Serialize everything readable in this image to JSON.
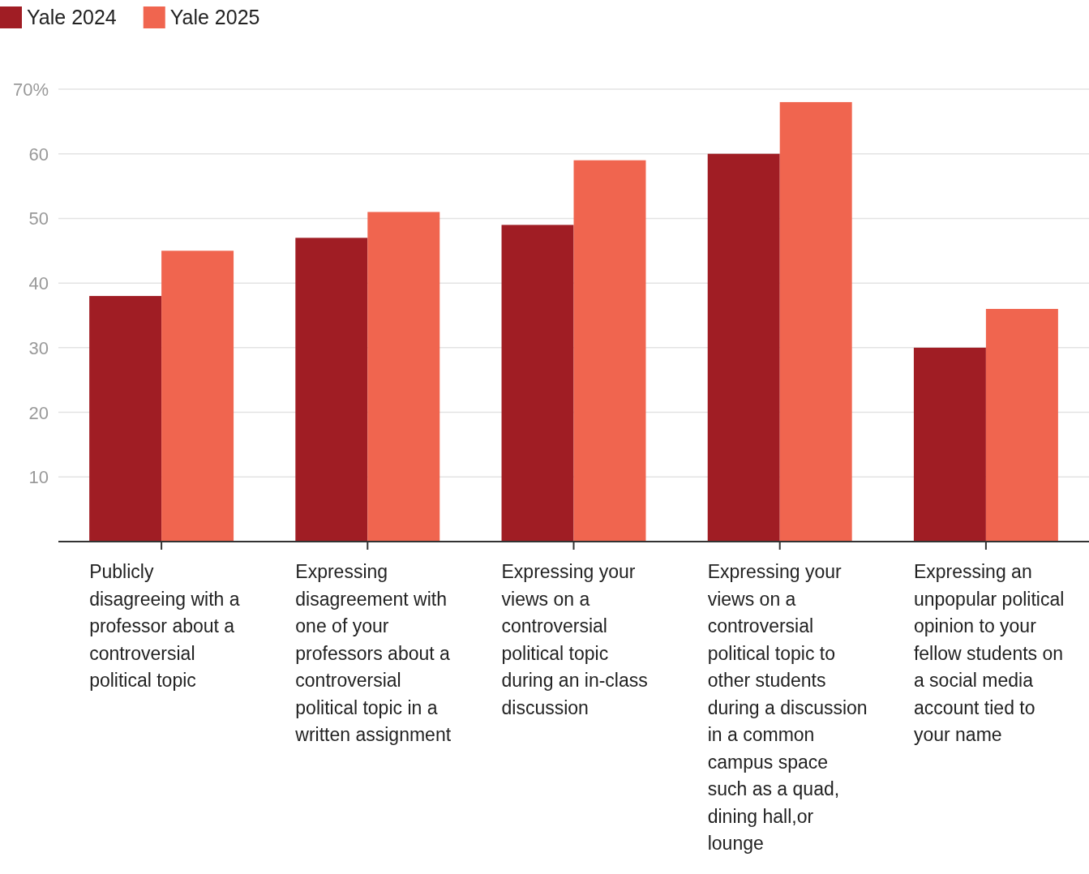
{
  "chart_data": {
    "type": "bar",
    "categories": [
      "Publicly disagreeing with a professor about a controversial political topic",
      "Expressing disagreement with one of your professors about a controversial political topic in a written assignment",
      "Expressing your views on a controversial political topic during an in-class discussion",
      "Expressing your views on a controversial political topic to other students during a discussion in a common campus space such as a quad, dining hall,or lounge",
      "Expressing an unpopular political opinion to your fellow students on a social media account tied to your name"
    ],
    "series": [
      {
        "name": "Yale 2024",
        "color": "#a01d24",
        "values": [
          38,
          47,
          49,
          60,
          30
        ]
      },
      {
        "name": "Yale 2025",
        "color": "#f0654f",
        "values": [
          45,
          51,
          59,
          68,
          36
        ]
      }
    ],
    "ylim": [
      0,
      70
    ],
    "yticks": [
      10,
      20,
      30,
      40,
      50,
      60,
      {
        "value": 70,
        "label": "70%"
      }
    ],
    "grid": "y",
    "legend": "top left"
  }
}
